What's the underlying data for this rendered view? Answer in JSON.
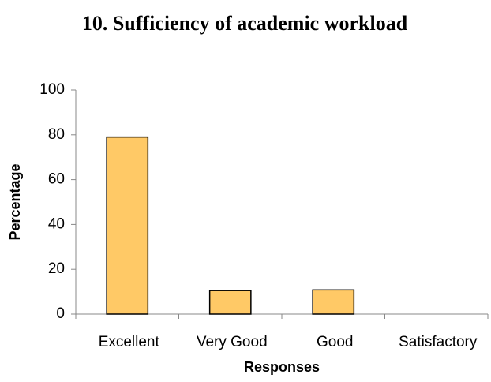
{
  "chart_data": {
    "type": "bar",
    "title": "10. Sufficiency of academic workload",
    "x_label": "Responses",
    "y_label": "Percentage",
    "categories": [
      "Excellent",
      "Very Good",
      "Good",
      "Satisfactory"
    ],
    "values": [
      79,
      10.5,
      10.8,
      0
    ],
    "color": "#ffc966",
    "ylim": [
      0,
      100
    ],
    "yticks": [
      0,
      20,
      40,
      60,
      80,
      100
    ],
    "grid": false
  }
}
